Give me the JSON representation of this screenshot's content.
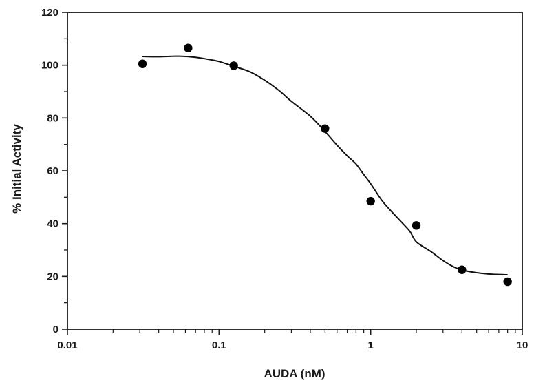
{
  "chart_data": {
    "type": "scatter",
    "title": "",
    "xlabel": "AUDA (nM)",
    "ylabel": "% Initial Activity",
    "xscale": "log",
    "xlim": [
      0.01,
      10
    ],
    "ylim": [
      0,
      120
    ],
    "x_ticks": [
      0.01,
      0.1,
      1,
      10
    ],
    "x_tick_labels": [
      "0.01",
      "0.1",
      "1",
      "10"
    ],
    "y_ticks": [
      0,
      20,
      40,
      60,
      80,
      100,
      120
    ],
    "y_tick_labels": [
      "0",
      "20",
      "40",
      "60",
      "80",
      "100",
      "120"
    ],
    "grid": false,
    "legend": "none",
    "series": [
      {
        "type": "scatter",
        "x": [
          0.03125,
          0.0625,
          0.125,
          0.5,
          1,
          2,
          4,
          8
        ],
        "y": [
          100.5,
          106.5,
          99.8,
          76,
          48.5,
          39.3,
          22.5,
          18
        ]
      },
      {
        "type": "line",
        "x": [
          0.03125,
          0.04,
          0.055,
          0.07,
          0.085,
          0.1,
          0.125,
          0.16,
          0.2,
          0.25,
          0.3,
          0.4,
          0.5,
          0.6,
          0.7,
          0.8,
          0.9,
          1.0,
          1.2,
          1.5,
          1.8,
          2.0,
          2.5,
          3.0,
          3.5,
          4.0,
          5.0,
          6.0,
          7.0,
          8.0
        ],
        "y": [
          103.3,
          103.2,
          103.4,
          103.0,
          102.2,
          101.4,
          99.6,
          97.5,
          94.3,
          90.3,
          86.3,
          80.7,
          74.9,
          69.7,
          65.7,
          62.6,
          58.6,
          55.1,
          48.4,
          42.2,
          37.3,
          33.1,
          29.4,
          26.0,
          23.7,
          22.4,
          21.4,
          20.9,
          20.7,
          20.6
        ]
      }
    ]
  }
}
